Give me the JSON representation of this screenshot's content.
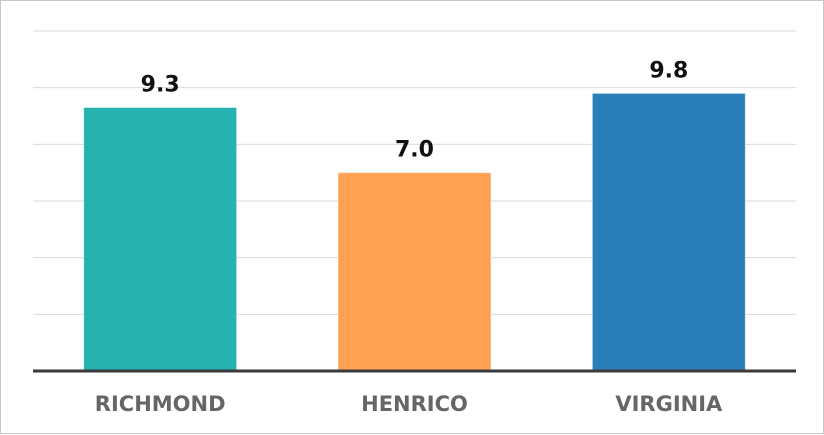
{
  "chart_data": {
    "type": "bar",
    "categories": [
      "RICHMOND",
      "HENRICO",
      "VIRGINIA"
    ],
    "values": [
      9.3,
      7.0,
      9.8
    ],
    "value_labels": [
      "9.3",
      "7.0",
      "9.8"
    ],
    "colors": [
      "#26b3b0",
      "#ffa052",
      "#2b7fb8"
    ],
    "title": "",
    "xlabel": "",
    "ylabel": "",
    "ylim": [
      0,
      12
    ],
    "grid": true,
    "legend": "none"
  }
}
